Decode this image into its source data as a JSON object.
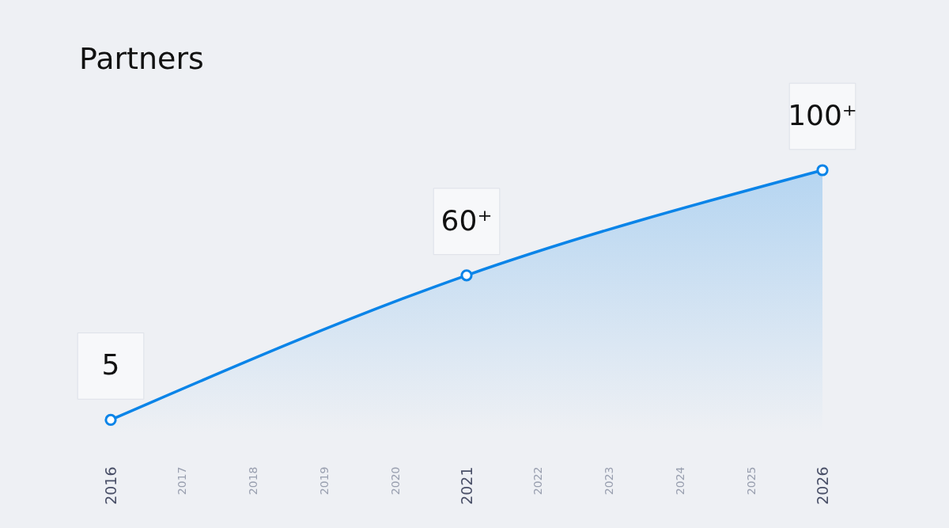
{
  "chart_data": {
    "type": "area",
    "title": "Partners",
    "categories": [
      "2016",
      "2017",
      "2018",
      "2019",
      "2020",
      "2021",
      "2022",
      "2023",
      "2024",
      "2025",
      "2026"
    ],
    "series": [
      {
        "color": "#0a84e8",
        "values": [
          5,
          null,
          null,
          null,
          null,
          60,
          null,
          null,
          null,
          null,
          100
        ],
        "value_labels": [
          "5",
          null,
          null,
          null,
          null,
          "60⁺",
          null,
          null,
          null,
          null,
          "100⁺"
        ]
      }
    ],
    "marker": "circle",
    "grid": false
  }
}
